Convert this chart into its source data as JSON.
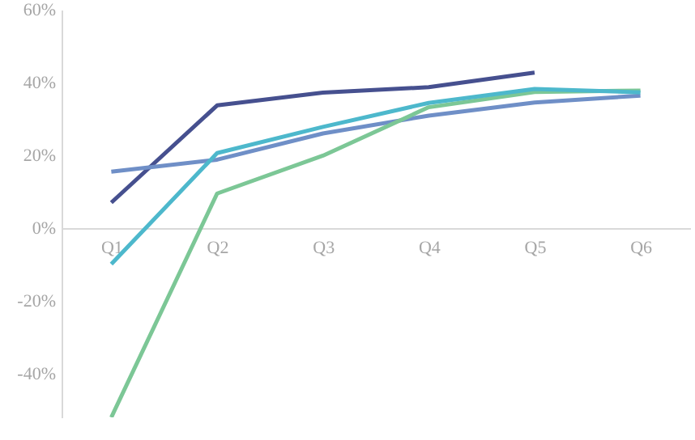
{
  "chart_data": {
    "type": "line",
    "categories": [
      "Q1",
      "Q2",
      "Q3",
      "Q4",
      "Q5",
      "Q6"
    ],
    "series": [
      {
        "color": "#46508f",
        "values": [
          7,
          33.7,
          37.2,
          38.7,
          42.7,
          null
        ]
      },
      {
        "color": "#6f8fc7",
        "values": [
          15.5,
          18.8,
          26,
          30.9,
          34.5,
          36.4
        ]
      },
      {
        "color": "#7cc796",
        "values": [
          -52,
          9.5,
          19.9,
          33.2,
          37.4,
          37.8
        ]
      },
      {
        "color": "#4db8cc",
        "values": [
          -9.9,
          20.6,
          27.8,
          34.4,
          38.2,
          37.3
        ]
      }
    ],
    "ylim": [
      -52,
      60
    ],
    "yticks": [
      {
        "value": -40,
        "label": "-40%"
      },
      {
        "value": -20,
        "label": "-20%"
      },
      {
        "value": 0,
        "label": "0%"
      },
      {
        "value": 20,
        "label": "20%"
      },
      {
        "value": 40,
        "label": "40%"
      },
      {
        "value": 60,
        "label": "60%"
      }
    ],
    "marker": "none",
    "line_style": "solid"
  }
}
